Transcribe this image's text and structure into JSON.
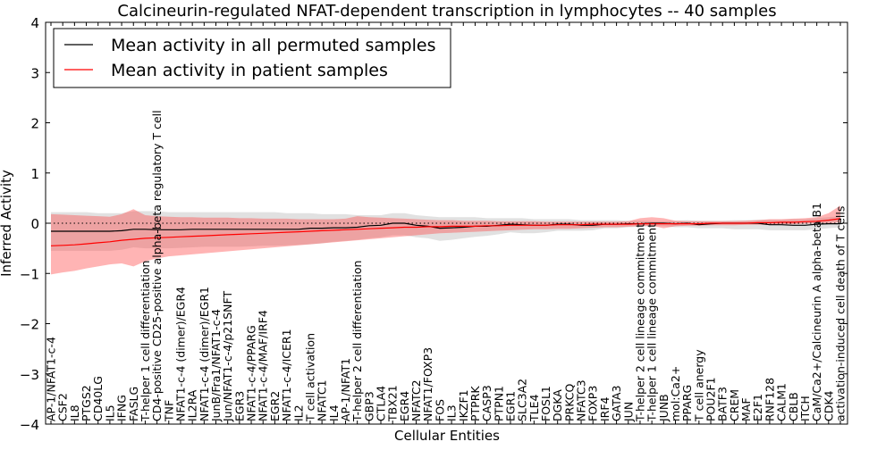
{
  "chart_data": {
    "type": "line",
    "title": "Calcineurin-regulated NFAT-dependent transcription in lymphocytes -- 40 samples",
    "xlabel": "Cellular Entities",
    "ylabel": "Inferred Activity",
    "ylim": [
      -4,
      4
    ],
    "yticks": [
      -4,
      -3,
      -2,
      -1,
      0,
      1,
      2,
      3,
      4
    ],
    "yticklabels": [
      "−4",
      "−3",
      "−2",
      "−1",
      "0",
      "1",
      "2",
      "3",
      "4"
    ],
    "legend_location": "top-left",
    "categories": [
      "AP-1/NFAT1-c-4",
      "CSF2",
      "IL8",
      "PTGS2",
      "CD40LG",
      "IL5",
      "IFNG",
      "FASLG",
      "T-helper 1 cell differentiation",
      "CD4-positive CD25-positive alpha-beta regulatory T cell",
      "TNF",
      "NFAT1-c-4 (dimer)/EGR4",
      "IL2RA",
      "NFAT1-c-4 (dimer)/EGR1",
      "JunB/Fra1/NFAT1-c-4",
      "Jun/NFAT1-c-4/p21SNFT",
      "EGR3",
      "NFAT1-c-4/PPARG",
      "NFAT1-c-4/MAF/IRF4",
      "EGR2",
      "NFAT1-c-4/ICER1",
      "IL2",
      "T cell activation",
      "NFATC1",
      "IL4",
      "AP-1/NFAT1",
      "T-helper 2 cell differentiation",
      "GBP3",
      "CTLA4",
      "TBX21",
      "EGR4",
      "NFATC2",
      "NFAT1/FOXP3",
      "FOS",
      "IL3",
      "IKZF1",
      "PTPRK",
      "CASP3",
      "PTPN1",
      "EGR1",
      "SLC3A2",
      "TLE4",
      "FOSL1",
      "DGKA",
      "PRKCQ",
      "NFATC3",
      "FOXP3",
      "IRF4",
      "GATA3",
      "JUN",
      "T-helper 2 cell lineage commitment",
      "T-helper 1 cell lineage commitment",
      "JUNB",
      "mol:Ca2+",
      "PPARG",
      "T cell anergy",
      "POU2F1",
      "BATF3",
      "CREM",
      "MAF",
      "E2F1",
      "RNF128",
      "CALM1",
      "CBLB",
      "ITCH",
      "CaM/Ca2+/Calcineurin A alpha-beta B1",
      "CDK4",
      "activation-induced cell death of T cells"
    ],
    "series": [
      {
        "name": "Mean activity in all permuted samples",
        "color": "#000000",
        "band_color": "#aaaaaa",
        "values": [
          -0.16,
          -0.16,
          -0.16,
          -0.16,
          -0.16,
          -0.16,
          -0.15,
          -0.12,
          -0.12,
          -0.13,
          -0.13,
          -0.13,
          -0.12,
          -0.12,
          -0.12,
          -0.12,
          -0.12,
          -0.12,
          -0.12,
          -0.12,
          -0.12,
          -0.12,
          -0.1,
          -0.1,
          -0.09,
          -0.09,
          -0.08,
          -0.05,
          -0.04,
          0,
          0,
          -0.04,
          -0.06,
          -0.1,
          -0.09,
          -0.08,
          -0.06,
          -0.06,
          -0.04,
          -0.02,
          -0.03,
          -0.04,
          -0.04,
          -0.02,
          -0.02,
          -0.04,
          -0.04,
          -0.02,
          -0.02,
          -0.01,
          -0.01,
          0,
          0,
          -0.01,
          0,
          -0.03,
          -0.01,
          0,
          0,
          0,
          0,
          -0.03,
          -0.03,
          -0.04,
          -0.04,
          -0.02,
          -0.01,
          -0.01
        ],
        "lower": [
          -0.55,
          -0.55,
          -0.55,
          -0.55,
          -0.55,
          -0.55,
          -0.53,
          -0.48,
          -0.5,
          -0.5,
          -0.5,
          -0.49,
          -0.48,
          -0.47,
          -0.47,
          -0.47,
          -0.47,
          -0.46,
          -0.45,
          -0.45,
          -0.44,
          -0.43,
          -0.42,
          -0.4,
          -0.37,
          -0.35,
          -0.33,
          -0.3,
          -0.28,
          -0.24,
          -0.24,
          -0.28,
          -0.3,
          -0.35,
          -0.33,
          -0.3,
          -0.27,
          -0.25,
          -0.22,
          -0.18,
          -0.2,
          -0.2,
          -0.18,
          -0.15,
          -0.15,
          -0.15,
          -0.14,
          -0.1,
          -0.1,
          -0.08,
          -0.07,
          -0.06,
          -0.06,
          -0.08,
          -0.08,
          -0.1,
          -0.1,
          -0.1,
          -0.12,
          -0.12,
          -0.12,
          -0.14,
          -0.14,
          -0.14,
          -0.14,
          -0.12,
          -0.1,
          -0.08
        ],
        "upper": [
          0.22,
          0.22,
          0.22,
          0.22,
          0.2,
          0.2,
          0.2,
          0.24,
          0.24,
          0.24,
          0.22,
          0.22,
          0.22,
          0.22,
          0.22,
          0.22,
          0.22,
          0.22,
          0.22,
          0.22,
          0.2,
          0.2,
          0.2,
          0.18,
          0.18,
          0.18,
          0.16,
          0.16,
          0.16,
          0.2,
          0.2,
          0.16,
          0.14,
          0.12,
          0.12,
          0.12,
          0.12,
          0.1,
          0.1,
          0.1,
          0.1,
          0.08,
          0.08,
          0.08,
          0.08,
          0.06,
          0.06,
          0.06,
          0.06,
          0.05,
          0.05,
          0.04,
          0.04,
          0.05,
          0.06,
          0.05,
          0.05,
          0.05,
          0.06,
          0.06,
          0.07,
          0.07,
          0.07,
          0.08,
          0.08,
          0.1,
          0.12,
          0.14
        ]
      },
      {
        "name": "Mean activity in patient samples",
        "color": "#ff0000",
        "band_color": "#ff4444",
        "values": [
          -0.45,
          -0.44,
          -0.43,
          -0.41,
          -0.39,
          -0.37,
          -0.34,
          -0.32,
          -0.3,
          -0.29,
          -0.28,
          -0.27,
          -0.26,
          -0.25,
          -0.24,
          -0.23,
          -0.22,
          -0.21,
          -0.2,
          -0.19,
          -0.18,
          -0.17,
          -0.16,
          -0.15,
          -0.14,
          -0.13,
          -0.12,
          -0.11,
          -0.1,
          -0.09,
          -0.08,
          -0.08,
          -0.07,
          -0.07,
          -0.06,
          -0.06,
          -0.06,
          -0.05,
          -0.05,
          -0.04,
          -0.04,
          -0.04,
          -0.04,
          -0.03,
          -0.03,
          -0.03,
          -0.02,
          -0.02,
          -0.02,
          -0.02,
          -0.01,
          -0.01,
          -0.01,
          -0.01,
          -0.01,
          -0.01,
          0,
          0,
          0,
          0,
          0.01,
          0.01,
          0.02,
          0.02,
          0.03,
          0.04,
          0.06,
          0.09
        ],
        "lower": [
          -1.02,
          -0.98,
          -0.95,
          -0.9,
          -0.86,
          -0.82,
          -0.8,
          -0.86,
          -0.76,
          -0.7,
          -0.66,
          -0.64,
          -0.62,
          -0.6,
          -0.58,
          -0.56,
          -0.54,
          -0.52,
          -0.5,
          -0.48,
          -0.46,
          -0.44,
          -0.42,
          -0.4,
          -0.38,
          -0.36,
          -0.34,
          -0.32,
          -0.3,
          -0.28,
          -0.26,
          -0.24,
          -0.22,
          -0.2,
          -0.19,
          -0.18,
          -0.17,
          -0.16,
          -0.15,
          -0.14,
          -0.13,
          -0.12,
          -0.12,
          -0.11,
          -0.11,
          -0.1,
          -0.09,
          -0.08,
          -0.08,
          -0.07,
          -0.06,
          -0.05,
          -0.1,
          -0.06,
          -0.05,
          -0.05,
          -0.04,
          -0.04,
          -0.04,
          -0.03,
          -0.03,
          -0.03,
          -0.02,
          -0.02,
          -0.01,
          0,
          0,
          0.02
        ],
        "upper": [
          0.18,
          0.17,
          0.16,
          0.15,
          0.14,
          0.13,
          0.18,
          0.28,
          0.16,
          0.14,
          0.13,
          0.12,
          0.12,
          0.11,
          0.11,
          0.11,
          0.1,
          0.1,
          0.09,
          0.09,
          0.09,
          0.08,
          0.08,
          0.08,
          0.08,
          0.09,
          0.14,
          0.12,
          0.11,
          0.1,
          0.09,
          0.08,
          0.07,
          0.06,
          0.06,
          0.05,
          0.05,
          0.05,
          0.04,
          0.04,
          0.04,
          0.04,
          0.03,
          0.03,
          0.03,
          0.03,
          0.03,
          0.03,
          0.03,
          0.04,
          0.1,
          0.12,
          0.1,
          0.05,
          0.04,
          0.04,
          0.04,
          0.04,
          0.04,
          0.05,
          0.06,
          0.08,
          0.08,
          0.09,
          0.1,
          0.12,
          0.2,
          0.35
        ]
      }
    ],
    "baseline": {
      "value": 0,
      "style": "dotted"
    }
  }
}
